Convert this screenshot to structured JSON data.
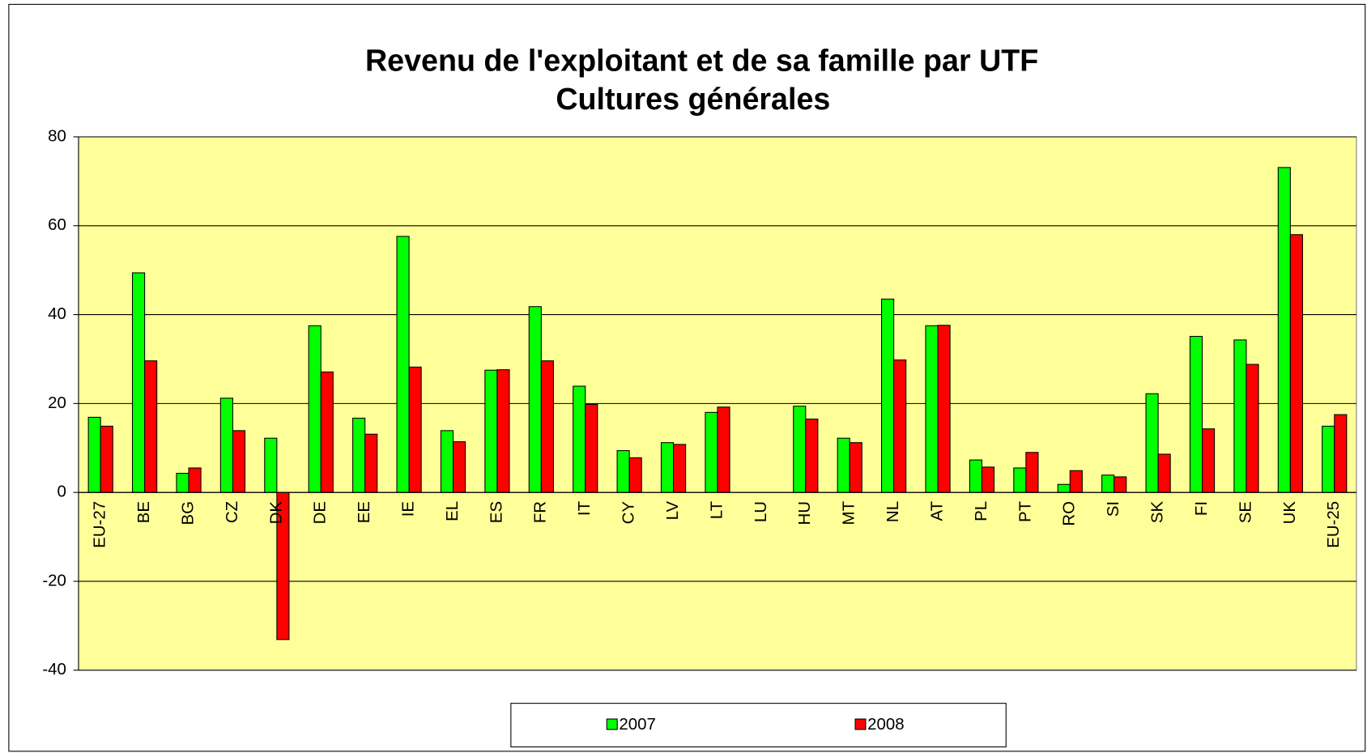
{
  "chart_data": {
    "type": "bar",
    "title": [
      "Revenu de l'exploitant et de sa famille par UTF",
      "Cultures générales"
    ],
    "categories": [
      "EU-27",
      "BE",
      "BG",
      "CZ",
      "DK",
      "DE",
      "EE",
      "IE",
      "EL",
      "ES",
      "FR",
      "IT",
      "CY",
      "LV",
      "LT",
      "LU",
      "HU",
      "MT",
      "NL",
      "AT",
      "PL",
      "PT",
      "RO",
      "SI",
      "SK",
      "FI",
      "SE",
      "UK",
      "EU-25"
    ],
    "series": [
      {
        "name": "2007",
        "color": "#00ff00",
        "values": [
          16.9,
          49.4,
          4.3,
          21.2,
          12.2,
          37.5,
          16.7,
          57.6,
          13.9,
          27.5,
          41.8,
          23.9,
          9.4,
          11.2,
          18.0,
          null,
          19.4,
          12.2,
          43.5,
          37.5,
          7.3,
          5.5,
          1.8,
          3.9,
          22.2,
          35.1,
          34.3,
          73.1,
          14.9
        ]
      },
      {
        "name": "2008",
        "color": "#ff0000",
        "values": [
          14.9,
          29.6,
          5.5,
          13.9,
          -33.1,
          27.1,
          13.1,
          28.2,
          11.4,
          27.6,
          29.6,
          19.8,
          7.8,
          10.8,
          19.2,
          null,
          16.5,
          11.2,
          29.8,
          37.6,
          5.7,
          9.0,
          4.9,
          3.5,
          8.6,
          14.3,
          28.8,
          58.0,
          17.5
        ]
      }
    ],
    "ylim": [
      -40,
      80
    ],
    "yticks": [
      -40,
      -20,
      0,
      20,
      40,
      60,
      80
    ],
    "grid": true,
    "plot_background": "#ffff99"
  }
}
